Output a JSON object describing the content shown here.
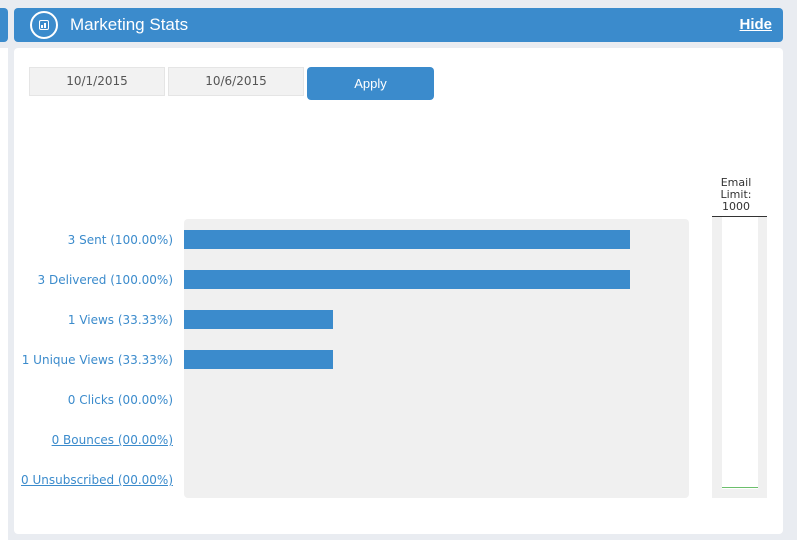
{
  "header": {
    "title": "Marketing Stats",
    "hide_label": "Hide",
    "icon": "chart-icon"
  },
  "filters": {
    "start_date": "10/1/2015",
    "end_date": "10/6/2015",
    "apply_label": "Apply"
  },
  "stats": [
    {
      "label": "3 Sent (100.00%)",
      "value": 3,
      "percent": 100.0,
      "link": false
    },
    {
      "label": "3 Delivered (100.00%)",
      "value": 3,
      "percent": 100.0,
      "link": false
    },
    {
      "label": "1 Views (33.33%)",
      "value": 1,
      "percent": 33.33,
      "link": false
    },
    {
      "label": "1 Unique Views (33.33%)",
      "value": 1,
      "percent": 33.33,
      "link": false
    },
    {
      "label": "0 Clicks (00.00%)",
      "value": 0,
      "percent": 0.0,
      "link": false
    },
    {
      "label": "0 Bounces (00.00%)",
      "value": 0,
      "percent": 0.0,
      "link": true
    },
    {
      "label": "0 Unsubscribed (00.00%)",
      "value": 0,
      "percent": 0.0,
      "link": true
    }
  ],
  "email_limit": {
    "label": "Email Limit:",
    "value": "1000"
  },
  "colors": {
    "accent": "#3b8bcc",
    "chart_bg": "#f0f0f0",
    "limit_fill": "#6cbf6c"
  }
}
